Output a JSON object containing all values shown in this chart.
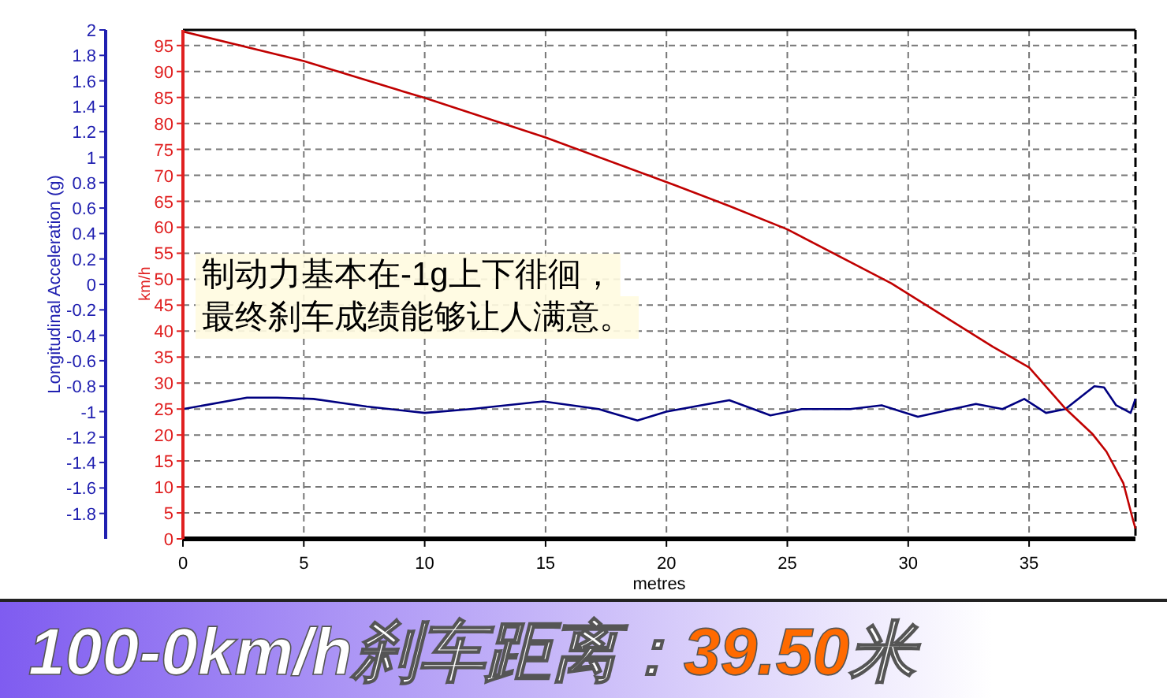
{
  "chart_data": {
    "type": "line",
    "title": "100-0km/h刹车距离：39.50米",
    "xlabel": "metres",
    "ylabel": "Longitudinal Acceleration (g)",
    "y2label": "km/h",
    "annotations": [
      "制动力基本在-1g上下徘徊，",
      "最终刹车成绩能够让人满意。"
    ],
    "xlim": [
      0,
      39.4
    ],
    "xticks": [
      0,
      5,
      10,
      15,
      20,
      25,
      30,
      35
    ],
    "ylim": [
      -2,
      2
    ],
    "yticks": [
      -1.8,
      -1.6,
      -1.4,
      -1.2,
      -1,
      -0.8,
      -0.6,
      -0.4,
      -0.2,
      0,
      0.2,
      0.4,
      0.6,
      0.8,
      1,
      1.2,
      1.4,
      1.6,
      1.8,
      2
    ],
    "y2lim": [
      0,
      98
    ],
    "y2ticks": [
      0,
      5,
      10,
      15,
      20,
      25,
      30,
      35,
      40,
      45,
      50,
      55,
      60,
      65,
      70,
      75,
      80,
      85,
      90,
      95
    ],
    "grid": true,
    "line_style": "solid",
    "marker": "none",
    "series": [
      {
        "color": "#000080",
        "x": [
          0,
          2.65,
          3.9,
          5.4,
          7.6,
          10,
          11.9,
          14.9,
          17.2,
          18.8,
          20,
          22.6,
          24.3,
          25.6,
          27.6,
          28.9,
          30.4,
          32.8,
          33.9,
          34.8,
          35.7,
          36.5,
          37.7,
          38.1,
          38.6,
          39.2,
          39.4
        ],
        "values": [
          -0.98,
          -0.89,
          -0.89,
          -0.9,
          -0.96,
          -1.01,
          -0.98,
          -0.92,
          -0.98,
          -1.07,
          -1,
          -0.91,
          -1.03,
          -0.98,
          -0.98,
          -0.95,
          -1.04,
          -0.94,
          -0.98,
          -0.9,
          -1.01,
          -0.98,
          -0.8,
          -0.81,
          -0.95,
          -1.01,
          -0.9
        ]
      },
      {
        "color": "#c00000",
        "axis": "y2",
        "x": [
          0,
          5,
          10,
          15,
          20.3,
          22.6,
          25,
          29.3,
          33.5,
          35,
          36.5,
          37.6,
          38.2,
          38.9,
          39.3,
          39.4
        ],
        "values": [
          97.7,
          92,
          84.9,
          77.3,
          68.2,
          64.1,
          59.6,
          49.2,
          37,
          33,
          25.1,
          20.3,
          16.8,
          10.7,
          3.6,
          2
        ]
      }
    ]
  }
}
